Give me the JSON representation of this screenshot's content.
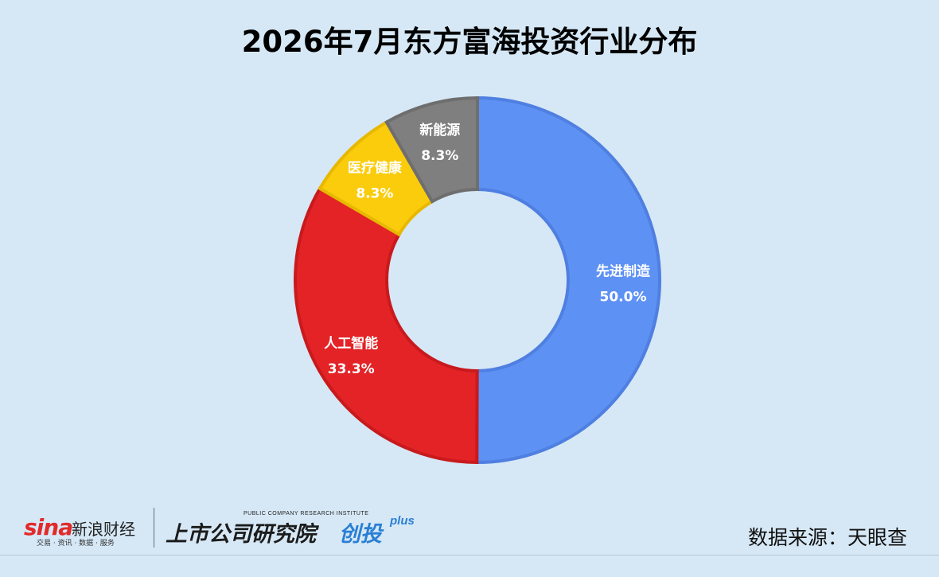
{
  "title": "2026年7月东方富海投资行业分布",
  "source": "数据来源：天眼查",
  "logos": {
    "sina_word": "sina",
    "sina_name": "新浪财经",
    "sina_tagline": "交易 · 资讯 · 数据 · 服务",
    "institute_en": "PUBLIC COMPANY RESEARCH INSTITUTE",
    "institute_cn": "上市公司研究院",
    "brand": "创投",
    "brand_plus": "plus"
  },
  "chart_data": {
    "type": "pie",
    "variant": "donut",
    "legend": "none",
    "slices": [
      {
        "label": "先进制造",
        "value": 50.0,
        "value_label": "50.0%",
        "color": "#5e91f4"
      },
      {
        "label": "人工智能",
        "value": 33.3,
        "value_label": "33.3%",
        "color": "#e32326"
      },
      {
        "label": "医疗健康",
        "value": 8.3,
        "value_label": "8.3%",
        "color": "#facc0c"
      },
      {
        "label": "新能源",
        "value": 8.3,
        "value_label": "8.3%",
        "color": "#7f7f7f"
      }
    ]
  }
}
